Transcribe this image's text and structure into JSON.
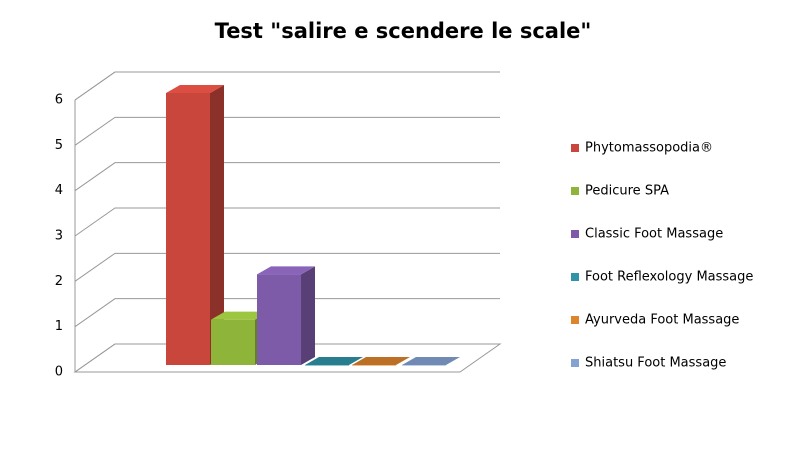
{
  "chart_data": {
    "type": "bar",
    "title": "Test \"salire e scendere le scale\"",
    "categories": [
      null
    ],
    "series": [
      {
        "name": "Phytomassopodia®",
        "color": "#c8463c",
        "values": [
          6
        ]
      },
      {
        "name": "Pedicure SPA",
        "color": "#8fb43a",
        "values": [
          1
        ]
      },
      {
        "name": "Classic Foot Massage",
        "color": "#7d5ba8",
        "values": [
          2
        ]
      },
      {
        "name": "Foot Reflexology Massage",
        "color": "#2f94a8",
        "values": [
          0
        ]
      },
      {
        "name": "Ayurveda Foot Massage",
        "color": "#dd842c",
        "values": [
          0
        ]
      },
      {
        "name": "Shiatsu Foot Massage",
        "color": "#84a2d2",
        "values": [
          0
        ]
      }
    ],
    "ylim": [
      0,
      6
    ],
    "yticks": [
      0,
      1,
      2,
      3,
      4,
      5,
      6
    ],
    "grid": true,
    "legend": "right"
  }
}
